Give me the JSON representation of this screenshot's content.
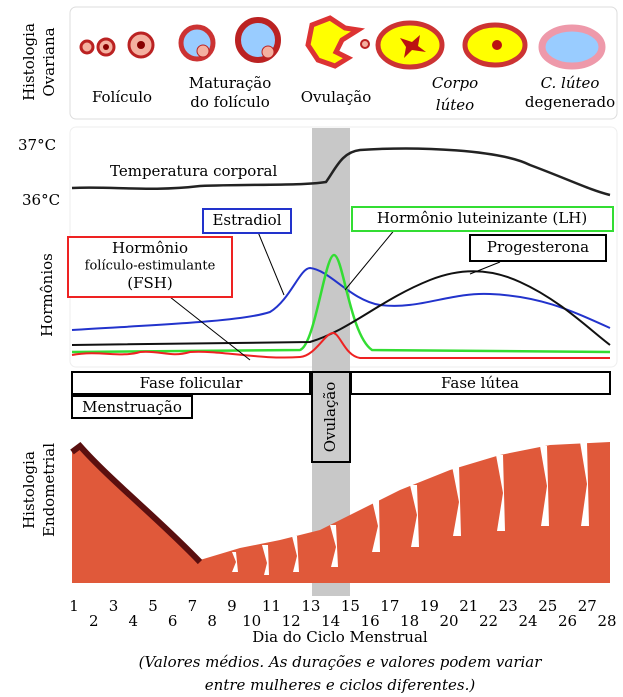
{
  "ovarian": {
    "label": [
      "Histologia",
      "Ovariana"
    ],
    "stages": [
      [
        "Folículo"
      ],
      [
        "Maturação",
        "do folículo"
      ],
      [
        "Ovulação"
      ],
      [
        "Corpo",
        "lúteo"
      ],
      [
        "C. lúteo",
        "degenerado"
      ]
    ]
  },
  "hormones": {
    "label": "Hormônios",
    "temperature_ticks": [
      "37°C",
      "36°C"
    ],
    "temperature": "Temperatura corporal",
    "estradiol": "Estradiol",
    "lh": "Hormônio luteinizante (LH)",
    "progesterone": "Progesterona",
    "fsh": [
      "Hormônio",
      "folículo-estimulante",
      "(FSH)"
    ]
  },
  "phases": {
    "follicular": "Fase folicular",
    "luteal": "Fase lútea",
    "menstruation": "Menstruação",
    "ovulation": "Ovulação"
  },
  "endometrium": {
    "label": [
      "Histologia",
      "Endometrial"
    ]
  },
  "axis": {
    "days": [
      1,
      2,
      3,
      4,
      5,
      6,
      7,
      8,
      9,
      10,
      11,
      12,
      13,
      14,
      15,
      16,
      17,
      18,
      19,
      20,
      21,
      22,
      23,
      24,
      25,
      26,
      27,
      28
    ],
    "title": "Dia do Ciclo Menstrual",
    "note": [
      "(Valores médios. As durações e valores podem variar",
      "entre mulheres e ciclos diferentes.)"
    ]
  }
}
